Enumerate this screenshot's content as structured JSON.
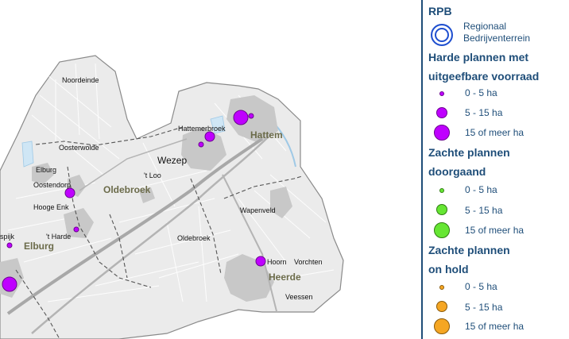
{
  "map": {
    "places": {
      "noordeinde": "Noordeinde",
      "oosterwolde": "Oosterwolde",
      "elburg_small": "Elburg",
      "oostendorp": "Oostendorp",
      "hooge_enk": "Hooge Enk",
      "t_harde": "'t Harde",
      "spijk": "spijk",
      "elburg_muni": "Elburg",
      "t_loo": "'t Loo",
      "oldebroek_muni": "Oldebroek",
      "oldebroek_small": "Oldebroek",
      "wezep": "Wezep",
      "hattemerbroek": "Hattemerbroek",
      "hattem": "Hattem",
      "wapenveld": "Wapenveld",
      "hoorn": "Hoorn",
      "vorchten": "Vorchten",
      "heerde": "Heerde",
      "veessen": "Veessen"
    }
  },
  "legend": {
    "rpb_title": "RPB",
    "rpb_label_line1": "Regionaal",
    "rpb_label_line2": "Bedrijventerrein",
    "harde_title_line1": "Harde plannen met",
    "harde_title_line2": "uitgeefbare voorraad",
    "zachte_doorgaand_line1": "Zachte plannen",
    "zachte_doorgaand_line2": "doorgaand",
    "zachte_onhold_line1": "Zachte plannen",
    "zachte_onhold_line2": "on hold",
    "size_small": "0 - 5 ha",
    "size_medium": "5 - 15 ha",
    "size_large": "15 of meer ha"
  },
  "colors": {
    "harde": "#bf00ff",
    "zachte_doorgaand": "#66e633",
    "zachte_onhold": "#f5a623",
    "rpb_ring": "#1f4fcf",
    "legend_text": "#1f4e79",
    "land": "#ebebeb",
    "urban": "#c8c8c8",
    "water": "#cfe6f5"
  }
}
